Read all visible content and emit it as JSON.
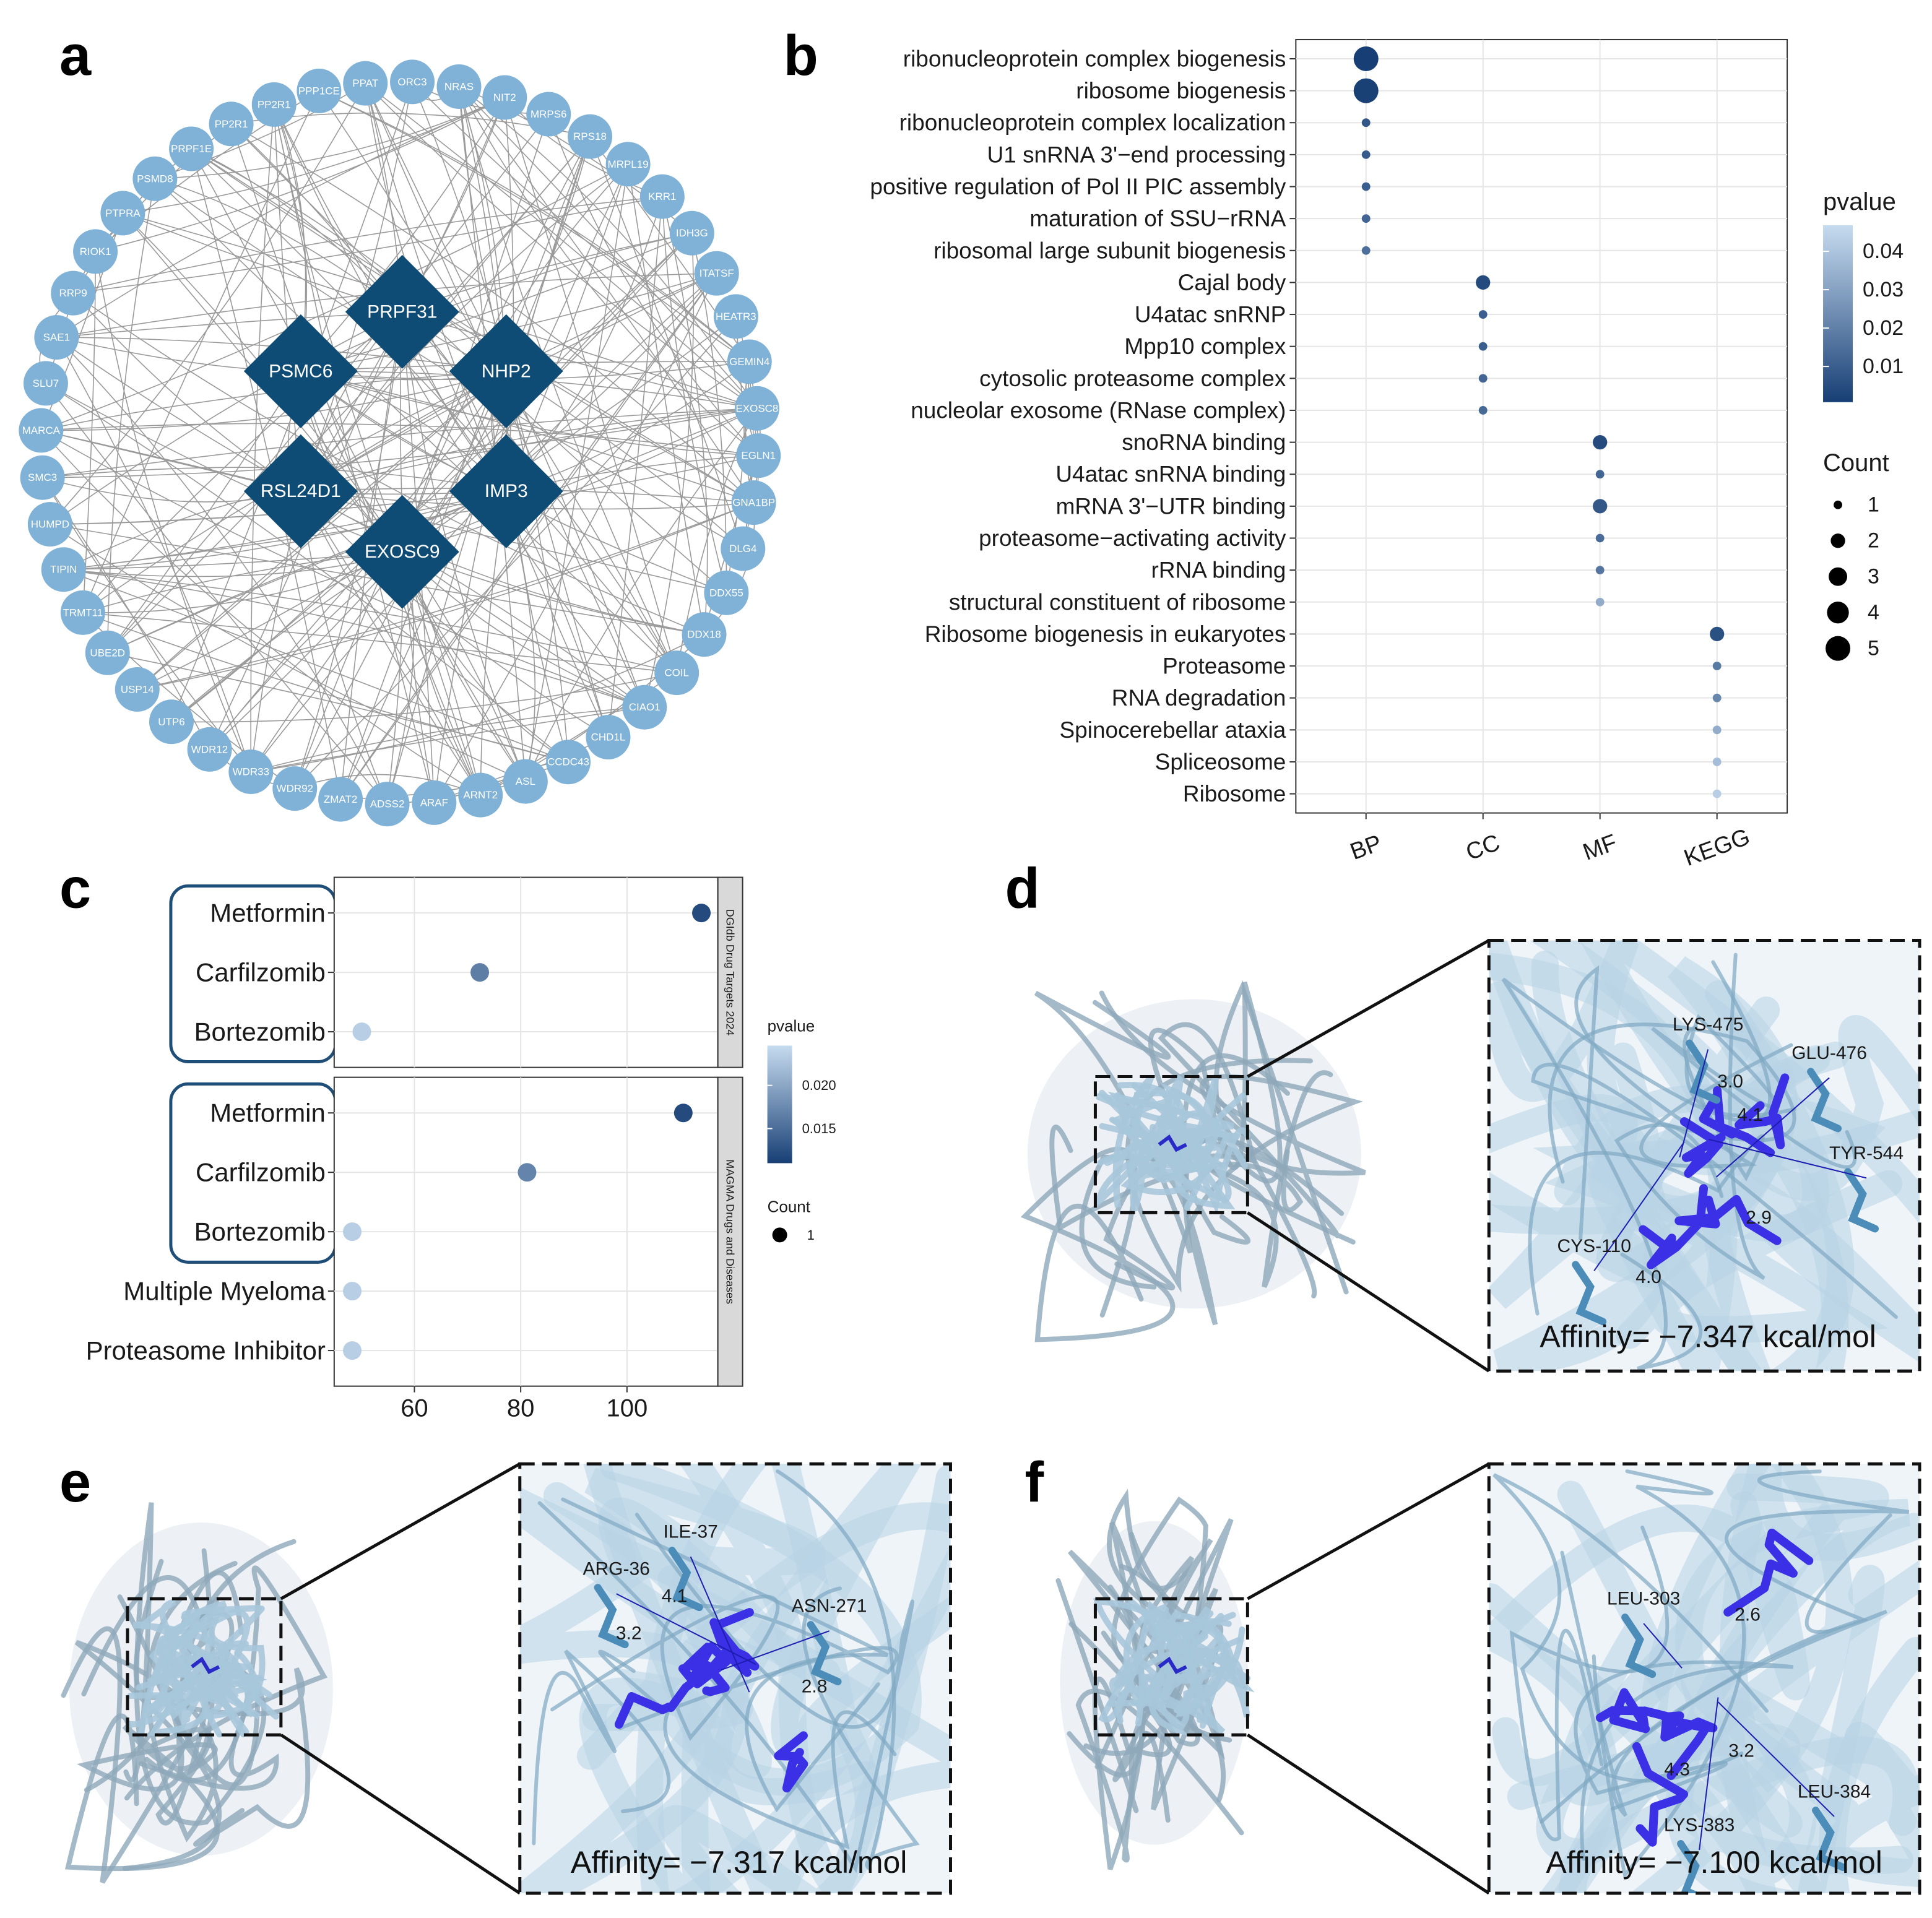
{
  "network": {
    "label": "a",
    "hubs": [
      "PRPF31",
      "PSMC6",
      "NHP2",
      "RSL24D1",
      "IMP3",
      "EXOSC9"
    ],
    "nodes": [
      "ORC3",
      "NRAS",
      "NIT2",
      "MRPS6",
      "RPS18",
      "MRPL19",
      "KRR1",
      "IDH3G",
      "ITATSF",
      "HEATR3",
      "GEMIN4",
      "EXOSC8",
      "EGLN1",
      "GNA1BP",
      "DLG4",
      "DDX55",
      "DDX18",
      "COIL",
      "CIAO1",
      "CHD1L",
      "CCDC43",
      "ASL",
      "ARNT2",
      "ARAF",
      "ADSS2",
      "ZMAT2",
      "WDR92",
      "WDR33",
      "WDR12",
      "UTP6",
      "USP14",
      "UBE2D",
      "TRMT11",
      "TIPIN",
      "HUMPD",
      "SMC3",
      "MARCA",
      "SLU7",
      "SAE1",
      "RRP9",
      "RIOK1",
      "PTPRA",
      "PSMD8",
      "PRPF1E",
      "PP2R1",
      "PP2R1",
      "PPP1CE",
      "PPAT"
    ]
  },
  "chart_data": [
    {
      "type": "dotplot",
      "label": "b",
      "series": [
        {
          "name": "BP",
          "categories": [
            "ribonucleoprotein complex biogenesis",
            "ribosome biogenesis",
            "ribonucleoprotein complex localization",
            "U1 snRNA 3'−end processing",
            "positive regulation of Pol II PIC assembly",
            "maturation of SSU−rRNA",
            "ribosomal large subunit biogenesis"
          ],
          "counts": [
            5,
            5,
            1,
            1,
            1,
            1,
            1
          ],
          "pvalues": [
            0.0008,
            0.0012,
            0.008,
            0.009,
            0.01,
            0.012,
            0.015
          ]
        },
        {
          "name": "CC",
          "categories": [
            "Cajal body",
            "U4atac snRNP",
            "Mpp10 complex",
            "cytosolic proteasome complex",
            "nucleolar exosome (RNase complex)"
          ],
          "counts": [
            2,
            1,
            1,
            1,
            1
          ],
          "pvalues": [
            0.004,
            0.01,
            0.01,
            0.012,
            0.013
          ]
        },
        {
          "name": "MF",
          "categories": [
            "snoRNA binding",
            "U4atac snRNA binding",
            "mRNA 3'−UTR binding",
            "proteasome−activating activity",
            "rRNA binding",
            "structural constituent of ribosome"
          ],
          "counts": [
            2,
            1,
            2,
            1,
            1,
            1
          ],
          "pvalues": [
            0.004,
            0.012,
            0.008,
            0.014,
            0.017,
            0.033
          ]
        },
        {
          "name": "KEGG",
          "categories": [
            "Ribosome biogenesis in eukaryotes",
            "Proteasome",
            "RNA degradation",
            "Spinocerebellar ataxia",
            "Spliceosome",
            "Ribosome"
          ],
          "counts": [
            2,
            1,
            1,
            1,
            1,
            1
          ],
          "pvalues": [
            0.006,
            0.018,
            0.022,
            0.033,
            0.038,
            0.043
          ]
        }
      ],
      "color_legend": {
        "title": "pvalue",
        "clim": [
          0.0007,
          0.0468
        ],
        "ticks": [
          0.04,
          0.03,
          0.02,
          0.01
        ],
        "low_color": "#173f75",
        "high_color": "#c6dbef"
      },
      "size_legend": {
        "title": "Count",
        "values": [
          1,
          2,
          3,
          4,
          5
        ]
      }
    },
    {
      "type": "facet_dotplot",
      "label": "c",
      "xlim": [
        44.9,
        117.1
      ],
      "xticks": [
        60,
        80,
        100
      ],
      "grid": true,
      "facets": [
        {
          "strip": "DGIdb Drug Targets 2024",
          "categories": [
            "Metformin",
            "Carfilzomib",
            "Bortezomib"
          ],
          "values": [
            114,
            72.3,
            50.1
          ],
          "pvalues": [
            0.012,
            0.0165,
            0.0235
          ],
          "counts": [
            1,
            1,
            1
          ]
        },
        {
          "strip": "MAGMA Drugs and Diseases",
          "categories": [
            "Metformin",
            "Carfilzomib",
            "Bortezomib",
            "Multiple Myeloma",
            "Proteasome Inhibitor"
          ],
          "values": [
            110.6,
            81.2,
            48.3,
            48.3,
            48.3
          ],
          "pvalues": [
            0.012,
            0.017,
            0.0235,
            0.0235,
            0.0235
          ],
          "counts": [
            1,
            1,
            1,
            1,
            1
          ]
        }
      ],
      "color_legend": {
        "title": "pvalue",
        "clim": [
          0.011,
          0.0246
        ],
        "ticks": [
          {
            "value": 0.02,
            "label": "0.020"
          },
          {
            "value": 0.015,
            "label": "0.015"
          }
        ],
        "low_color": "#173f75",
        "high_color": "#c6dbef"
      },
      "size_legend": {
        "title": "Count",
        "values": [
          1
        ]
      }
    }
  ],
  "docking": [
    {
      "label": "d",
      "residues": [
        "LYS-475",
        "GLU-476",
        "TYR-544",
        "CYS-110"
      ],
      "distances": [
        "3.0",
        "4.1",
        "2.9",
        "4.0"
      ],
      "affinity": "Affinity= −7.347 kcal/mol"
    },
    {
      "label": "e",
      "residues": [
        "ARG-36",
        "ILE-37",
        "ASN-271"
      ],
      "distances": [
        "4.1",
        "3.2",
        "2.8"
      ],
      "affinity": "Affinity= −7.317 kcal/mol"
    },
    {
      "label": "f",
      "residues": [
        "LEU-303",
        "LEU-384",
        "LYS-383"
      ],
      "distances": [
        "2.6",
        "3.2",
        "4.3"
      ],
      "affinity": "Affinity= −7.100 kcal/mol"
    }
  ]
}
